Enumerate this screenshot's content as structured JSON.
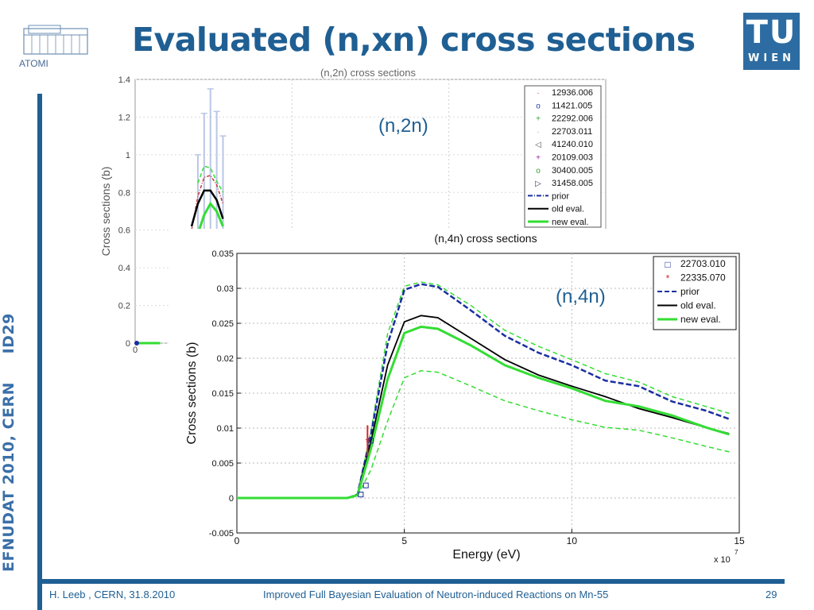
{
  "slide": {
    "title": "Evaluated (n,xn) cross sections",
    "side_text": "EFNUDAT 2010, CERN     ID29",
    "footer_left": "H. Leeb , CERN, 31.8.2010",
    "footer_center": "Improved Full Bayesian Evaluation of Neutron-induced Reactions on Mn-55",
    "page_number": "29",
    "logo_left_text": "ATOMI",
    "logo_right_top": "TU",
    "logo_right_bottom": "WIEN",
    "accent_color": "#1f5f93"
  },
  "chart_data": [
    {
      "type": "line",
      "title": "(n,2n) cross sections",
      "annotation": "(n,2n)",
      "ylabel": "Cross sections (b)",
      "xlabel": "",
      "xlim": [
        0,
        15
      ],
      "ylim": [
        0,
        1.4
      ],
      "y_ticks": [
        "1.4",
        "1.2",
        "1",
        "0.8",
        "0.6",
        "0.4",
        "0.2",
        "0"
      ],
      "x_ticks": [
        "0"
      ],
      "grid": true,
      "legend_position": "top-right",
      "legend": [
        {
          "label": "12936.006",
          "marker": "·",
          "color": "#d62828"
        },
        {
          "label": "11421.005",
          "marker": "o",
          "color": "#1f3fa8"
        },
        {
          "label": "22292.006",
          "marker": "+",
          "color": "#2ca82c"
        },
        {
          "label": "22703.011",
          "marker": "·",
          "color": "#9aa0b8"
        },
        {
          "label": "41240.010",
          "marker": "◁",
          "color": "#555555"
        },
        {
          "label": "20109.003",
          "marker": "+",
          "color": "#a020a0"
        },
        {
          "label": "30400.005",
          "marker": "o",
          "color": "#2ca82c"
        },
        {
          "label": "31458.005",
          "marker": "▷",
          "color": "#333366"
        },
        {
          "label": "prior",
          "style": "dash-dot",
          "color": "#1a2fa0"
        },
        {
          "label": "old eval.",
          "style": "solid",
          "color": "#000000"
        },
        {
          "label": "new eval.",
          "style": "solid",
          "color": "#33dd33"
        }
      ],
      "series": [
        {
          "name": "old eval.",
          "x": [
            1.8,
            2.0,
            2.2,
            2.4,
            2.6,
            2.8
          ],
          "y": [
            0.62,
            0.74,
            0.81,
            0.81,
            0.76,
            0.66
          ]
        },
        {
          "name": "new eval.",
          "x": [
            1.8,
            2.0,
            2.2,
            2.4,
            2.6,
            2.8
          ],
          "y": [
            0.5,
            0.58,
            0.68,
            0.74,
            0.7,
            0.62
          ]
        },
        {
          "name": "prior",
          "x": [
            1.8,
            2.0,
            2.2,
            2.4,
            2.6,
            2.8
          ],
          "y": [
            0.6,
            0.78,
            0.88,
            0.89,
            0.84,
            0.74
          ]
        },
        {
          "name": "uncertainty upper",
          "x": [
            2.0,
            2.2,
            2.4,
            2.6,
            2.8
          ],
          "y": [
            0.85,
            0.94,
            0.93,
            0.86,
            0.8
          ]
        }
      ],
      "error_bars": [
        {
          "x": 2.0,
          "y": 0.7,
          "err": 0.3
        },
        {
          "x": 2.2,
          "y": 0.82,
          "err": 0.4
        },
        {
          "x": 2.4,
          "y": 0.9,
          "err": 0.45
        },
        {
          "x": 2.6,
          "y": 0.85,
          "err": 0.38
        },
        {
          "x": 2.8,
          "y": 0.75,
          "err": 0.35
        }
      ]
    },
    {
      "type": "line",
      "title": "(n,4n) cross sections",
      "annotation": "(n,4n)",
      "ylabel": "Cross sections (b)",
      "xlabel": "Energy (eV)",
      "x_multiplier_base": "x 10",
      "x_multiplier_exp": "7",
      "xlim": [
        0,
        15
      ],
      "ylim": [
        -0.005,
        0.035
      ],
      "x_ticks": [
        "0",
        "5",
        "10",
        "15"
      ],
      "y_ticks": [
        "0.035",
        "0.03",
        "0.025",
        "0.02",
        "0.015",
        "0.01",
        "0.005",
        "0",
        "-0.005"
      ],
      "grid": true,
      "legend_position": "top-right",
      "legend": [
        {
          "label": "22703.010",
          "marker": "□",
          "color": "#1a2fa0"
        },
        {
          "label": "22335.070",
          "marker": "*",
          "color": "#d62828"
        },
        {
          "label": "prior",
          "style": "dashed",
          "color": "#1a2fa0"
        },
        {
          "label": "old eval.",
          "style": "solid",
          "color": "#000000"
        },
        {
          "label": "new eval.",
          "style": "solid",
          "color": "#33dd33"
        }
      ],
      "series": [
        {
          "name": "prior",
          "x": [
            0,
            3.3,
            3.6,
            4.0,
            4.5,
            5.0,
            5.5,
            6.0,
            7.0,
            8.0,
            9.0,
            10.0,
            11.0,
            12.0,
            13.0,
            14.0,
            14.7
          ],
          "y": [
            0,
            0,
            0.0005,
            0.009,
            0.022,
            0.0298,
            0.0306,
            0.0302,
            0.0268,
            0.0232,
            0.0208,
            0.019,
            0.0168,
            0.016,
            0.0138,
            0.0125,
            0.0113
          ]
        },
        {
          "name": "old eval.",
          "x": [
            0,
            3.3,
            3.6,
            4.0,
            4.5,
            5.0,
            5.5,
            6.0,
            7.0,
            8.0,
            9.0,
            10.0,
            11.0,
            12.0,
            13.0,
            14.0,
            14.7
          ],
          "y": [
            0,
            0,
            0.0005,
            0.008,
            0.019,
            0.0252,
            0.0261,
            0.0258,
            0.0228,
            0.0198,
            0.0176,
            0.016,
            0.0145,
            0.0128,
            0.0115,
            0.0101,
            0.0092
          ]
        },
        {
          "name": "new eval.",
          "x": [
            0,
            3.3,
            3.6,
            4.0,
            4.5,
            5.0,
            5.5,
            6.0,
            7.0,
            8.0,
            9.0,
            10.0,
            11.0,
            12.0,
            13.0,
            14.0,
            14.7
          ],
          "y": [
            0,
            0,
            0.0004,
            0.007,
            0.017,
            0.0236,
            0.0245,
            0.0242,
            0.0218,
            0.019,
            0.0172,
            0.0157,
            0.0139,
            0.0131,
            0.0118,
            0.0101,
            0.0091
          ]
        },
        {
          "name": "uncertainty upper",
          "x": [
            3.6,
            4.0,
            4.5,
            5.0,
            5.5,
            6.0,
            7.0,
            8.0,
            9.0,
            10.0,
            11.0,
            12.0,
            13.0,
            14.0,
            14.7
          ],
          "y": [
            0.0006,
            0.0095,
            0.0235,
            0.0303,
            0.0309,
            0.0305,
            0.0275,
            0.024,
            0.0217,
            0.0198,
            0.0178,
            0.0166,
            0.0145,
            0.0131,
            0.0121
          ]
        },
        {
          "name": "uncertainty lower",
          "x": [
            3.6,
            4.0,
            4.5,
            5.0,
            5.5,
            6.0,
            7.0,
            8.0,
            9.0,
            10.0,
            11.0,
            12.0,
            13.0,
            14.0,
            14.7
          ],
          "y": [
            0.0003,
            0.004,
            0.011,
            0.0172,
            0.0182,
            0.018,
            0.016,
            0.0139,
            0.0125,
            0.0112,
            0.0101,
            0.0097,
            0.0086,
            0.0074,
            0.0066
          ]
        }
      ],
      "points": [
        {
          "dataset": "22703.010",
          "x": 3.7,
          "y": 0.0005
        },
        {
          "dataset": "22703.010",
          "x": 3.85,
          "y": 0.0018
        },
        {
          "dataset": "22703.010",
          "x": 4.0,
          "y": 0.0082
        },
        {
          "dataset": "22335.070",
          "x": 3.9,
          "y": 0.0082,
          "err": 0.0022
        }
      ]
    }
  ]
}
